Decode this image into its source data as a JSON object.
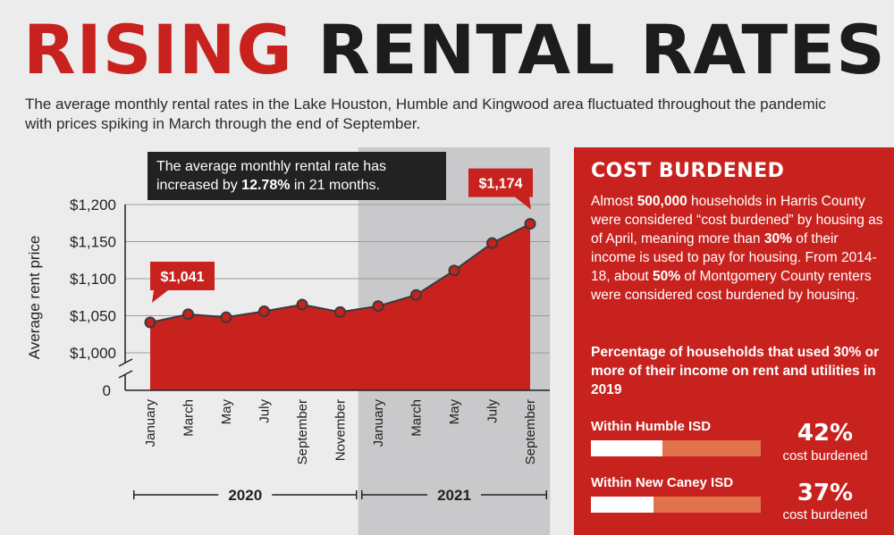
{
  "header": {
    "title_red": "RISING",
    "title_black": "RENTAL RATES",
    "subtitle": "The average monthly rental rates in the Lake Houston, Humble and Kingwood area fluctuated throughout the pandemic with prices spiking in March through the end of September."
  },
  "callout": {
    "prefix": "The average monthly rental rate has increased by ",
    "highlight": "12.78%",
    "suffix": " in 21 months."
  },
  "chart_data": {
    "type": "area",
    "title": "",
    "xlabel": "",
    "ylabel": "Average rent price",
    "categories": [
      "January",
      "March",
      "May",
      "July",
      "September",
      "November",
      "January",
      "March",
      "May",
      "July",
      "September"
    ],
    "years": [
      {
        "label": "2020",
        "from": 0,
        "to": 5
      },
      {
        "label": "2021",
        "from": 6,
        "to": 10
      }
    ],
    "series": [
      {
        "values": [
          1041,
          1052,
          1048,
          1056,
          1065,
          1055,
          1063,
          1078,
          1111,
          1148,
          1174
        ]
      }
    ],
    "yticks": [
      1000,
      1050,
      1100,
      1150,
      1200
    ],
    "ytick_labels": [
      "$1,000",
      "$1,050",
      "$1,100",
      "$1,150",
      "$1,200"
    ],
    "zero_label": "0",
    "axis_break": true,
    "ylim": [
      975,
      1200
    ],
    "labels": [
      {
        "index": 0,
        "text": "$1,041"
      },
      {
        "index": 10,
        "text": "$1,174"
      }
    ],
    "shaded_year": "2021",
    "grid": true,
    "colors": {
      "area": "#c8221e",
      "line": "#3a3a3a",
      "shade": "#c9c9cb",
      "label_box": "#c8221e"
    }
  },
  "panel": {
    "heading": "COST BURDENED",
    "para": [
      {
        "t": "Almost ",
        "b": false
      },
      {
        "t": "500,000",
        "b": true
      },
      {
        "t": " households in Harris County were considered “cost burdened” by housing as of April, meaning more than ",
        "b": false
      },
      {
        "t": "30%",
        "b": true
      },
      {
        "t": " of their income is used to pay for housing. From 2014-18, about ",
        "b": false
      },
      {
        "t": "50%",
        "b": true
      },
      {
        "t": " of Montgomery County renters were considered cost burdened by housing.",
        "b": false
      }
    ],
    "subheading": "Percentage of households that used 30% or more of their income on rent and utilities in 2019",
    "bars": [
      {
        "label": "Within Humble ISD",
        "value": 42,
        "pct_text": "42%",
        "sub": "cost burdened"
      },
      {
        "label": "Within New Caney ISD",
        "value": 37,
        "pct_text": "37%",
        "sub": "cost burdened"
      }
    ]
  }
}
